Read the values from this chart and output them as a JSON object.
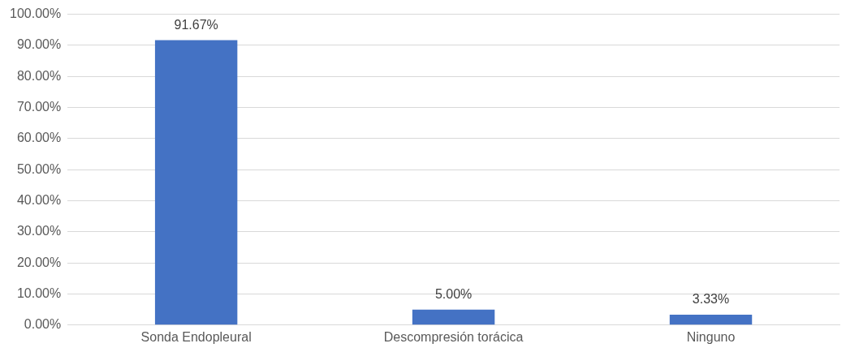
{
  "chart_data": {
    "type": "bar",
    "categories": [
      "Sonda Endopleural",
      "Descompresión torácica",
      "Ninguno"
    ],
    "values": [
      91.67,
      5.0,
      3.33
    ],
    "color": "#4472c4",
    "value_labels": [
      "91.67%",
      "5.00%",
      "3.33%"
    ],
    "ylim": [
      0,
      100
    ],
    "yticks": [
      {
        "value": 0,
        "label": "0.00%"
      },
      {
        "value": 10,
        "label": "10.00%"
      },
      {
        "value": 20,
        "label": "20.00%"
      },
      {
        "value": 30,
        "label": "30.00%"
      },
      {
        "value": 40,
        "label": "40.00%"
      },
      {
        "value": 50,
        "label": "50.00%"
      },
      {
        "value": 60,
        "label": "60.00%"
      },
      {
        "value": 70,
        "label": "70.00%"
      },
      {
        "value": 80,
        "label": "80.00%"
      },
      {
        "value": 90,
        "label": "90.00%"
      },
      {
        "value": 100,
        "label": "100.00%"
      }
    ],
    "grid": "y",
    "legend": false
  }
}
